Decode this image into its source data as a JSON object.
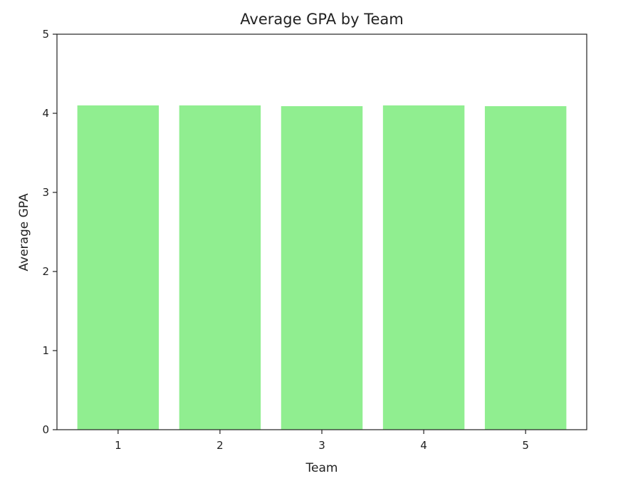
{
  "chart_data": {
    "type": "bar",
    "title": "Average GPA by Team",
    "xlabel": "Team",
    "ylabel": "Average GPA",
    "categories": [
      "1",
      "2",
      "3",
      "4",
      "5"
    ],
    "values": [
      4.1,
      4.1,
      4.09,
      4.1,
      4.09
    ],
    "ylim": [
      0,
      5
    ],
    "yticks": [
      "0",
      "1",
      "2",
      "3",
      "4",
      "5"
    ],
    "bar_color": "#90ee90",
    "grid": false,
    "legend": "none"
  }
}
